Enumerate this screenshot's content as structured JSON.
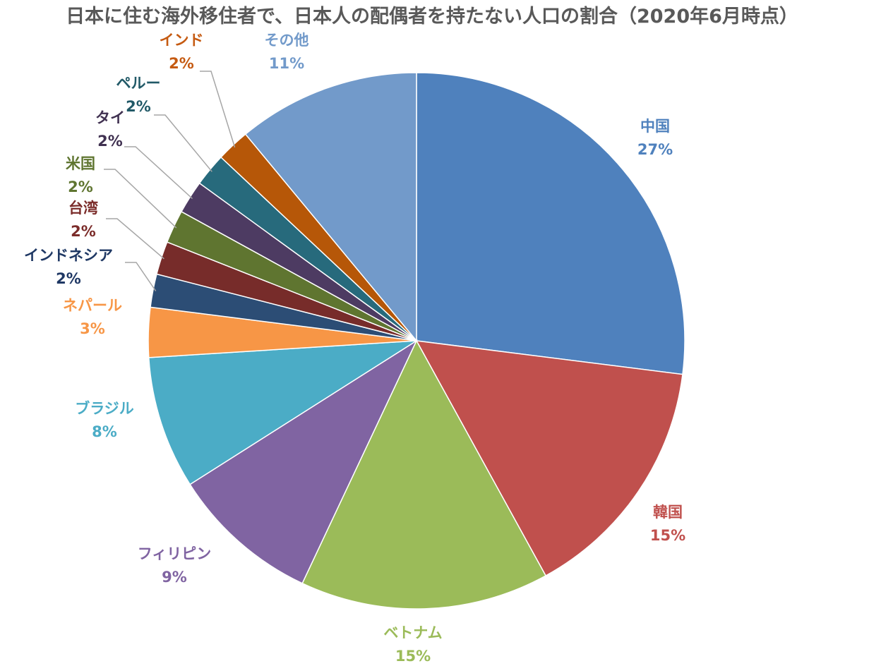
{
  "chart_data": {
    "type": "pie",
    "title": "日本に住む海外移住者で、日本人の配偶者を持たない人口の割合（2020年6月時点）",
    "slices": [
      {
        "label": "中国",
        "value": 27,
        "value_label": "27%",
        "color": "#4F81BD"
      },
      {
        "label": "韓国",
        "value": 15,
        "value_label": "15%",
        "color": "#C0504D"
      },
      {
        "label": "ベトナム",
        "value": 15,
        "value_label": "15%",
        "color": "#9BBB59"
      },
      {
        "label": "フィリピン",
        "value": 9,
        "value_label": "9%",
        "color": "#8064A2"
      },
      {
        "label": "ブラジル",
        "value": 8,
        "value_label": "8%",
        "color": "#4BACC6"
      },
      {
        "label": "ネパール",
        "value": 3,
        "value_label": "3%",
        "color": "#F79646"
      },
      {
        "label": "インドネシア",
        "value": 2,
        "value_label": "2%",
        "color": "#2C4D75"
      },
      {
        "label": "台湾",
        "value": 2,
        "value_label": "2%",
        "color": "#772C2A"
      },
      {
        "label": "米国",
        "value": 2,
        "value_label": "2%",
        "color": "#5F7530"
      },
      {
        "label": "タイ",
        "value": 2,
        "value_label": "2%",
        "color": "#4D3B62"
      },
      {
        "label": "ペルー",
        "value": 2,
        "value_label": "2%",
        "color": "#276A7C"
      },
      {
        "label": "インド",
        "value": 2,
        "value_label": "2%",
        "color": "#B65708"
      },
      {
        "label": "その他",
        "value": 11,
        "value_label": "11%",
        "color": "#729ACA"
      }
    ],
    "legend": "none",
    "label_text_colors": [
      "#4F81BD",
      "#C0504D",
      "#9BBB59",
      "#8064A2",
      "#4BACC6",
      "#F79646",
      "#1F3864",
      "#7B2C2A",
      "#5F7530",
      "#403151",
      "#215967",
      "#C55A11",
      "#729ACA"
    ],
    "leader_line_color": "#A6A6A6"
  }
}
